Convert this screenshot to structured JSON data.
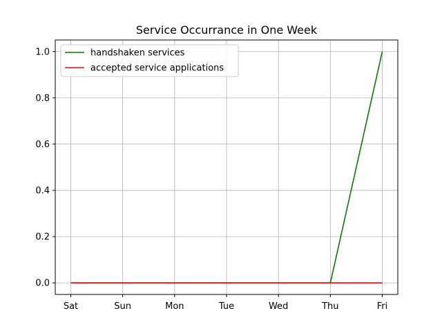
{
  "chart_data": {
    "type": "line",
    "title": "Service Occurrance in One Week",
    "xlabel": "",
    "ylabel": "",
    "categories": [
      "Sat",
      "Sun",
      "Mon",
      "Tue",
      "Wed",
      "Thu",
      "Fri"
    ],
    "ylim": [
      -0.05,
      1.05
    ],
    "yticks": [
      "0.0",
      "0.2",
      "0.4",
      "0.6",
      "0.8",
      "1.0"
    ],
    "grid": true,
    "legend_position": "top-left",
    "series": [
      {
        "name": "handshaken services",
        "color": "#008000",
        "values": [
          0,
          0,
          0,
          0,
          0,
          0,
          1
        ]
      },
      {
        "name": "accepted service applications",
        "color": "#ff0000",
        "values": [
          0,
          0,
          0,
          0,
          0,
          0,
          0
        ]
      }
    ]
  }
}
